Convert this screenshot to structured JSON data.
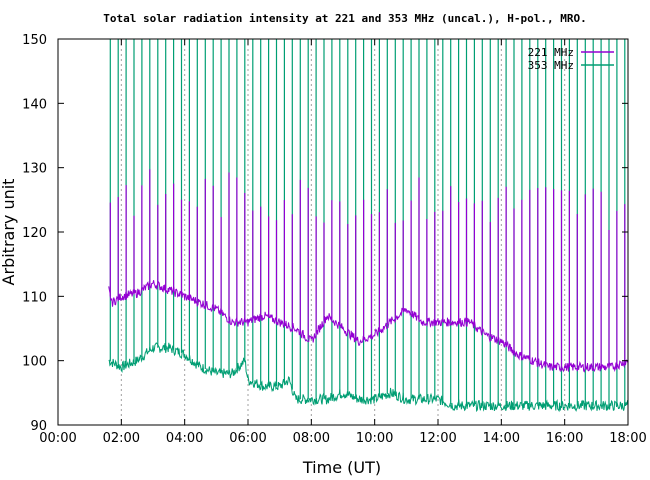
{
  "chart_data": {
    "type": "line",
    "title": "Total solar radiation intensity at 221 and 353 MHz (uncal.), H-pol., MRO.",
    "xlabel": "Time (UT)",
    "ylabel": "Arbitrary unit",
    "xlim": [
      0,
      18
    ],
    "ylim": [
      90,
      150
    ],
    "x_ticks": [
      "00:00",
      "02:00",
      "04:00",
      "06:00",
      "08:00",
      "10:00",
      "12:00",
      "14:00",
      "16:00",
      "18:00"
    ],
    "y_ticks": [
      "90",
      "100",
      "110",
      "120",
      "130",
      "140",
      "150"
    ],
    "grid": "vertical dotted",
    "legend_position": "top-right",
    "colors": {
      "series_221": "#9400d3",
      "series_353": "#009e73"
    },
    "series": [
      {
        "name": "221 MHz",
        "x": [
          1.6,
          1.7,
          2.0,
          2.5,
          3.0,
          3.5,
          4.0,
          4.5,
          5.0,
          5.5,
          6.0,
          6.5,
          7.0,
          7.5,
          8.0,
          8.5,
          9.0,
          9.5,
          10.0,
          10.5,
          11.0,
          11.5,
          12.0,
          12.5,
          13.0,
          13.5,
          14.0,
          14.5,
          15.0,
          15.5,
          16.0,
          16.5,
          17.0,
          17.5,
          18.0
        ],
        "values": [
          111,
          109,
          110,
          110.5,
          112,
          111,
          110,
          109,
          108,
          106,
          106,
          107,
          106,
          105,
          103,
          107,
          105,
          103,
          104,
          106,
          108,
          106,
          106,
          106,
          106,
          104,
          103,
          101,
          100,
          99,
          99,
          99,
          99,
          99,
          100
        ]
      },
      {
        "name": "353 MHz",
        "x": [
          1.6,
          2.0,
          2.5,
          3.0,
          3.5,
          4.0,
          4.5,
          5.0,
          5.5,
          5.9,
          6.0,
          6.5,
          7.0,
          7.3,
          7.5,
          8.0,
          8.5,
          9.0,
          9.5,
          10.0,
          10.5,
          11.0,
          11.5,
          12.0,
          12.5,
          13.0,
          13.5,
          14.0,
          14.5,
          15.0,
          15.5,
          16.0,
          16.5,
          17.0,
          17.5,
          18.0
        ],
        "values": [
          100,
          99,
          100,
          102,
          102,
          101,
          99,
          98,
          98,
          100,
          97,
          96,
          96,
          97,
          94,
          94,
          94,
          95,
          94,
          94,
          95,
          94,
          94,
          94,
          93,
          93,
          93,
          93,
          93,
          93,
          93,
          93,
          93,
          93,
          93,
          93
        ]
      }
    ]
  }
}
